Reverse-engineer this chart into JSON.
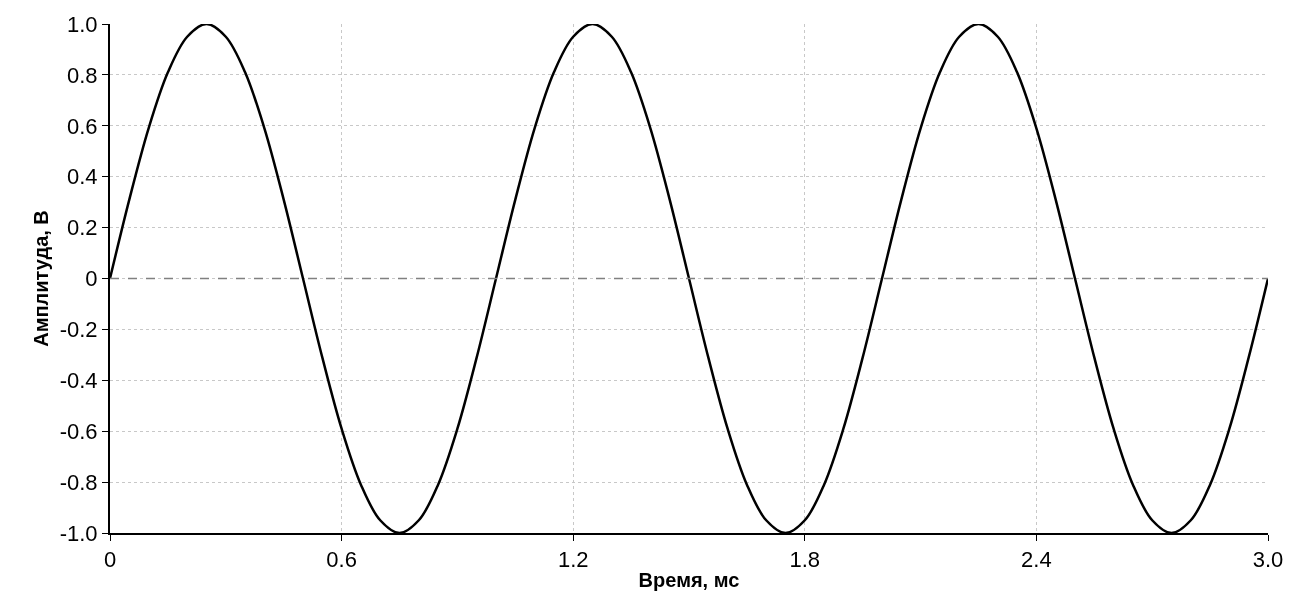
{
  "chart_data": {
    "type": "line",
    "xlabel": "Время, мс",
    "ylabel": "Амплитуда, В",
    "x": [
      0,
      0.05,
      0.1,
      0.15,
      0.2,
      0.25,
      0.3,
      0.35,
      0.4,
      0.45,
      0.5,
      0.55,
      0.6,
      0.65,
      0.7,
      0.75,
      0.8,
      0.85,
      0.9,
      0.95,
      1.0,
      1.05,
      1.1,
      1.15,
      1.2,
      1.25,
      1.3,
      1.35,
      1.4,
      1.45,
      1.5,
      1.55,
      1.6,
      1.65,
      1.7,
      1.75,
      1.8,
      1.85,
      1.9,
      1.95,
      2.0,
      2.05,
      2.1,
      2.15,
      2.2,
      2.25,
      2.3,
      2.35,
      2.4,
      2.45,
      2.5,
      2.55,
      2.6,
      2.65,
      2.7,
      2.75,
      2.8,
      2.85,
      2.9,
      2.95,
      3.0
    ],
    "series": [
      {
        "color": "#000000",
        "values": [
          0,
          0.31,
          0.59,
          0.81,
          0.95,
          1,
          0.95,
          0.81,
          0.59,
          0.31,
          0,
          -0.31,
          -0.59,
          -0.81,
          -0.95,
          -1,
          -0.95,
          -0.81,
          -0.59,
          -0.31,
          0,
          0.31,
          0.59,
          0.81,
          0.95,
          1,
          0.95,
          0.81,
          0.59,
          0.31,
          0,
          -0.31,
          -0.59,
          -0.81,
          -0.95,
          -1,
          -0.95,
          -0.81,
          -0.59,
          -0.31,
          0,
          0.31,
          0.59,
          0.81,
          0.95,
          1,
          0.95,
          0.81,
          0.59,
          0.31,
          0,
          -0.31,
          -0.59,
          -0.81,
          -0.95,
          -1,
          -0.95,
          -0.81,
          -0.59,
          -0.31,
          0
        ]
      }
    ],
    "xlim": [
      0,
      3
    ],
    "xticks": [
      0,
      0.6,
      1.2,
      1.8,
      2.4,
      {
        "value": 3,
        "label": "3.0"
      }
    ],
    "ylim": [
      -1,
      1
    ],
    "yticks": [
      {
        "value": -1,
        "label": "-1.0"
      },
      -0.8,
      -0.6,
      -0.4,
      -0.2,
      0,
      0.2,
      0.4,
      0.6,
      0.8,
      {
        "value": 1,
        "label": "1.0"
      }
    ],
    "grid": true,
    "legend": false,
    "marker": "none",
    "line_style": "solid",
    "ref_lines": [
      {
        "axis": "y",
        "value": 0,
        "color": "#808080",
        "line_style": "dashed"
      }
    ]
  }
}
